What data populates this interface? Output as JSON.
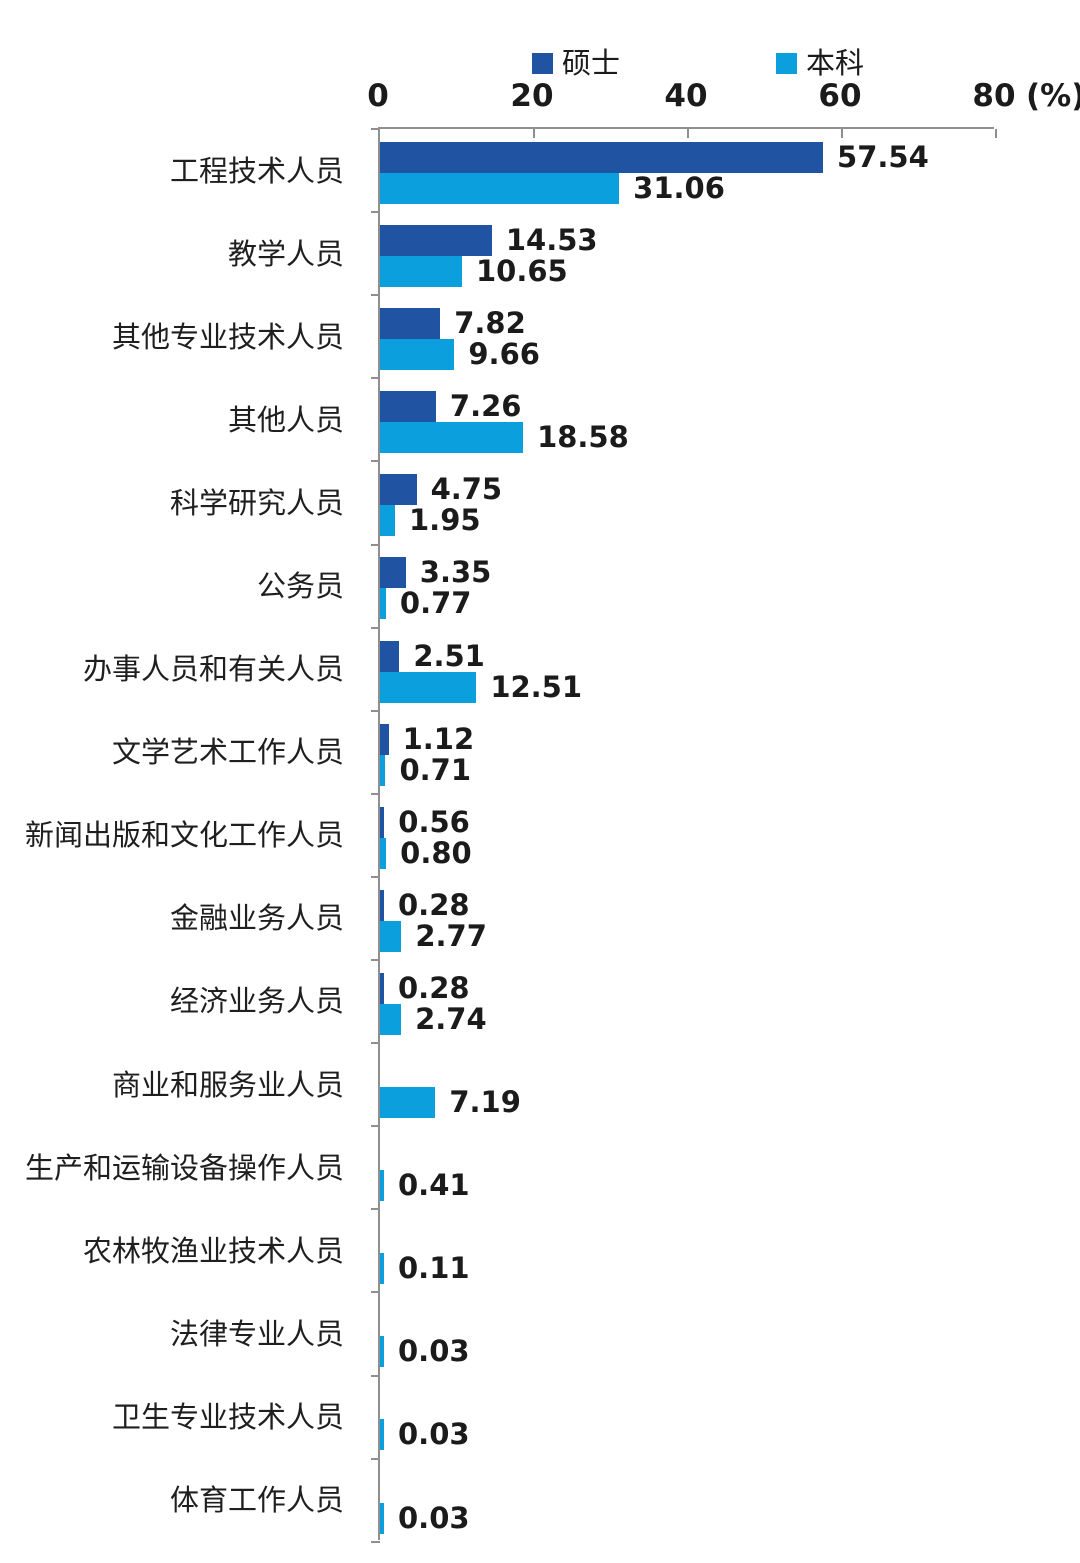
{
  "chart_data": {
    "type": "bar",
    "orientation": "horizontal",
    "title": "",
    "unit": "(%)",
    "xlim": [
      0,
      80
    ],
    "xticks": [
      "0",
      "20",
      "40",
      "60",
      "80"
    ],
    "legend_position": "top",
    "grid": false,
    "categories": [
      "工程技术人员",
      "教学人员",
      "其他专业技术人员",
      "其他人员",
      "科学研究人员",
      "公务员",
      "办事人员和有关人员",
      "文学艺术工作人员",
      "新闻出版和文化工作人员",
      "金融业务人员",
      "经济业务人员",
      "商业和服务业人员",
      "生产和运输设备操作人员",
      "农林牧渔业技术人员",
      "法律专业人员",
      "卫生专业技术人员",
      "体育工作人员"
    ],
    "series": [
      {
        "name": "硕士",
        "color": "#2153A3",
        "values": [
          57.54,
          14.53,
          7.82,
          7.26,
          4.75,
          3.35,
          2.51,
          1.12,
          0.56,
          0.28,
          0.28,
          null,
          null,
          null,
          null,
          null,
          null
        ],
        "labels": [
          "57.54",
          "14.53",
          "7.82",
          "7.26",
          "4.75",
          "3.35",
          "2.51",
          "1.12",
          "0.56",
          "0.28",
          "0.28",
          null,
          null,
          null,
          null,
          null,
          null
        ]
      },
      {
        "name": "本科",
        "color": "#0C9FDE",
        "values": [
          31.06,
          10.65,
          9.66,
          18.58,
          1.95,
          0.77,
          12.51,
          0.71,
          0.8,
          2.77,
          2.74,
          7.19,
          0.41,
          0.11,
          0.03,
          0.03,
          0.03
        ],
        "labels": [
          "31.06",
          "10.65",
          "9.66",
          "18.58",
          "1.95",
          "0.77",
          "12.51",
          "0.71",
          "0.80",
          "2.77",
          "2.74",
          "7.19",
          "0.41",
          "0.11",
          "0.03",
          "0.03",
          "0.03"
        ]
      }
    ],
    "colors": {
      "axis": "#8f8f8f",
      "text": "#1b1b1b"
    }
  }
}
